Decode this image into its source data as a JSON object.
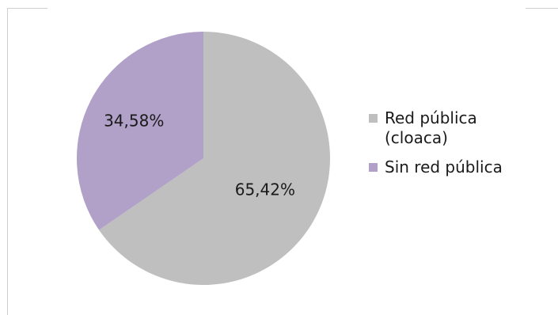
{
  "chart_data": {
    "type": "pie",
    "series": [
      {
        "name": "Red pública (cloaca)",
        "value": 65.42,
        "label": "65,42%",
        "color": "#bfbfbf"
      },
      {
        "name": "Sin red pública",
        "value": 34.58,
        "label": "34,58%",
        "color": "#b1a0c7"
      }
    ],
    "legend_position": "right"
  },
  "legend": {
    "items": [
      {
        "label": "Red pública\n(cloaca)",
        "color": "#bfbfbf"
      },
      {
        "label": "Sin red pública",
        "color": "#b1a0c7"
      }
    ]
  }
}
